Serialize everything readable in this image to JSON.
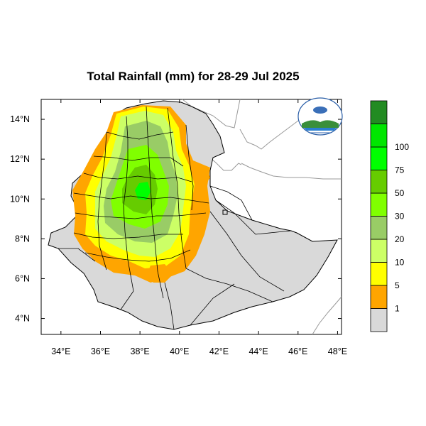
{
  "title": "Total Rainfall (mm) for 28-29 Jul 2025",
  "x_ticks": [
    {
      "value": 34,
      "label": "34°E"
    },
    {
      "value": 36,
      "label": "36°E"
    },
    {
      "value": 38,
      "label": "38°E"
    },
    {
      "value": 40,
      "label": "40°E"
    },
    {
      "value": 42,
      "label": "42°E"
    },
    {
      "value": 44,
      "label": "44°E"
    },
    {
      "value": 46,
      "label": "46°E"
    },
    {
      "value": 48,
      "label": "48°E"
    }
  ],
  "y_ticks": [
    {
      "value": 14,
      "label": "14°N"
    },
    {
      "value": 12,
      "label": "12°N"
    },
    {
      "value": 10,
      "label": "10°N"
    },
    {
      "value": 8,
      "label": "8°N"
    },
    {
      "value": 6,
      "label": "6°N"
    },
    {
      "value": 4,
      "label": "4°N"
    }
  ],
  "lon_range": [
    33.0,
    48.2
  ],
  "lat_range": [
    3.2,
    15.0
  ],
  "legend": {
    "colors": [
      "#d9d9d9",
      "#ffa500",
      "#ffff00",
      "#ccff66",
      "#99cc66",
      "#80ff00",
      "#66cc00",
      "#00ff00",
      "#00e600",
      "#228b22"
    ],
    "labels": [
      "1",
      "5",
      "10",
      "20",
      "30",
      "50",
      "75",
      "100"
    ]
  },
  "colors": {
    "land_outside": "#ffffff",
    "border": "#000000",
    "neighbor_border": "#999999"
  },
  "logo": {
    "icon": "meteorology-agency-logo"
  }
}
